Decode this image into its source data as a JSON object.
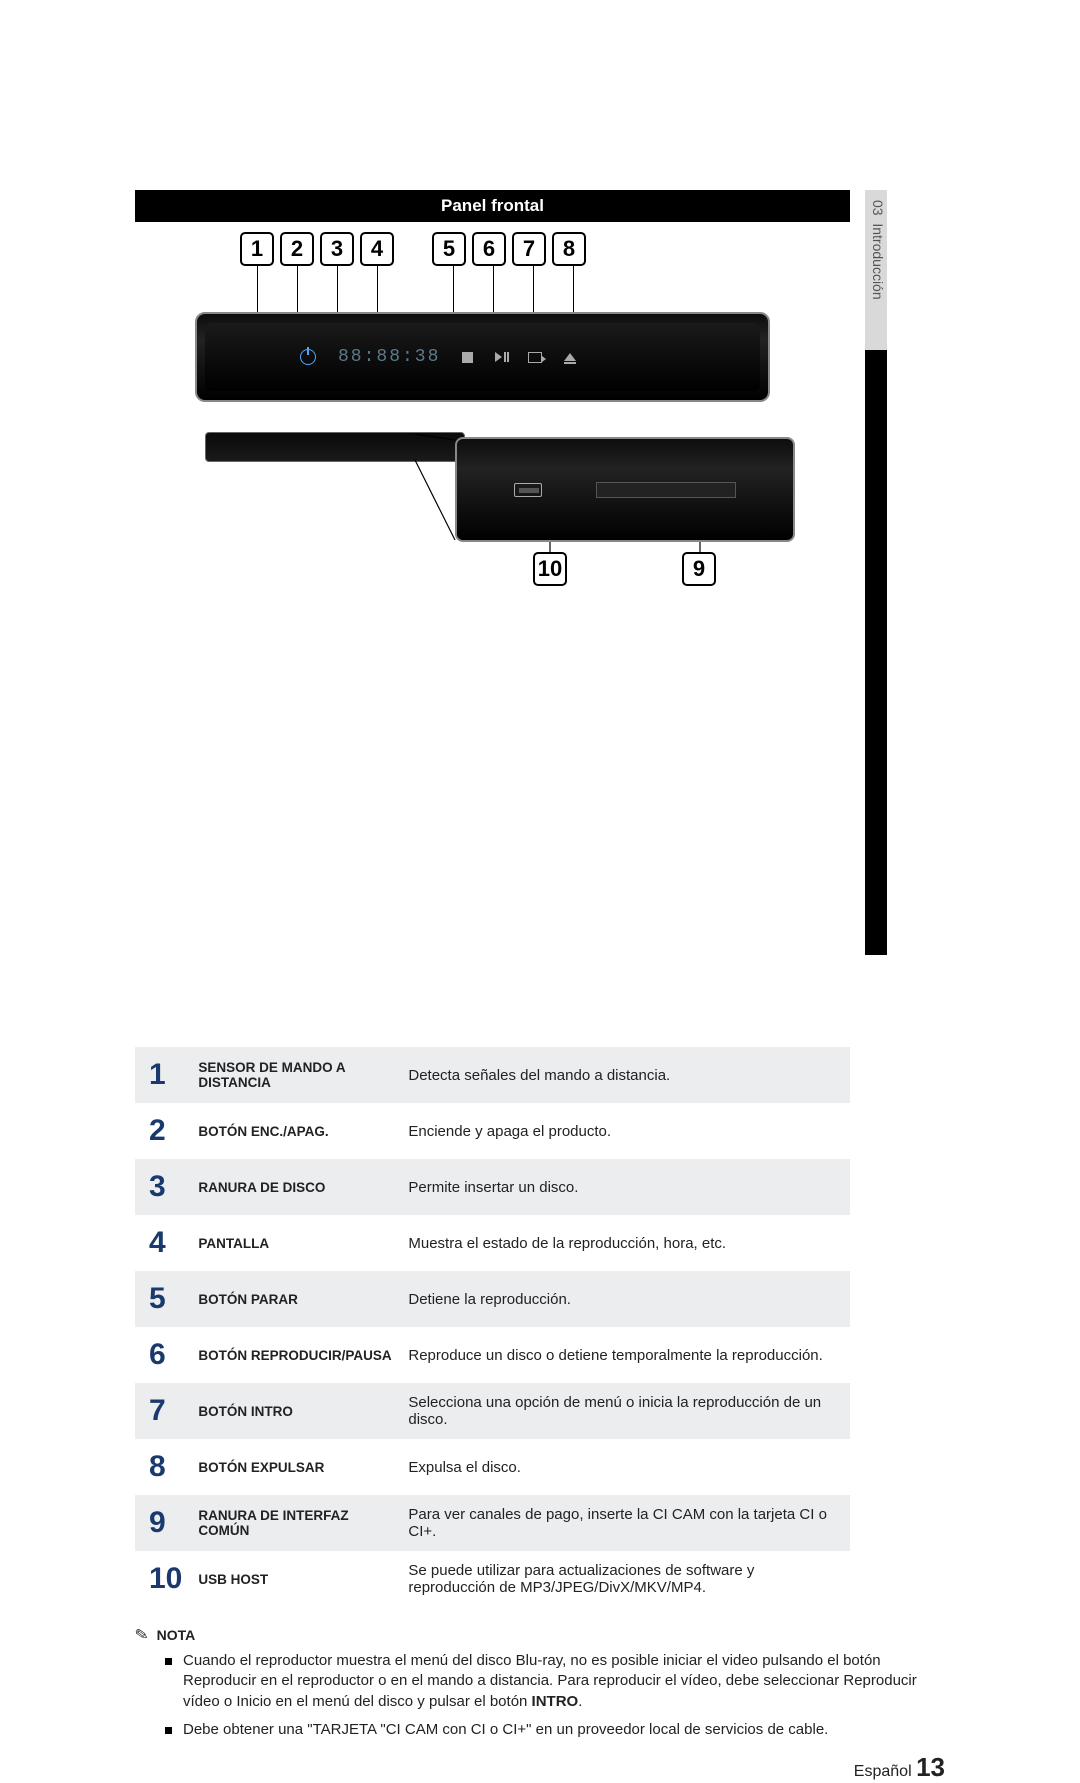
{
  "header": {
    "title": "Panel frontal",
    "side_section_num": "03",
    "side_section_title": "Introducción"
  },
  "diagram": {
    "top_callouts": [
      "1",
      "2",
      "3",
      "4",
      "5",
      "6",
      "7",
      "8"
    ],
    "bottom_callouts": [
      "10",
      "9"
    ],
    "display_text": "88:88:38"
  },
  "parts": [
    {
      "num": "1",
      "name": "SENSOR DE MANDO A DISTANCIA",
      "desc": "Detecta señales del mando a distancia."
    },
    {
      "num": "2",
      "name": "BOTÓN ENC./APAG.",
      "desc": "Enciende y apaga el producto."
    },
    {
      "num": "3",
      "name": "RANURA DE DISCO",
      "desc": "Permite insertar un disco."
    },
    {
      "num": "4",
      "name": "PANTALLA",
      "desc": "Muestra el estado de la reproducción, hora, etc."
    },
    {
      "num": "5",
      "name": "BOTÓN PARAR",
      "desc": "Detiene la reproducción."
    },
    {
      "num": "6",
      "name": "BOTÓN REPRODUCIR/PAUSA",
      "desc": "Reproduce un disco o detiene temporalmente la reproducción."
    },
    {
      "num": "7",
      "name": "BOTÓN INTRO",
      "desc": "Selecciona una opción de menú o inicia la reproducción de un disco."
    },
    {
      "num": "8",
      "name": "BOTÓN EXPULSAR",
      "desc": "Expulsa el disco."
    },
    {
      "num": "9",
      "name": "RANURA DE INTERFAZ COMÚN",
      "desc": "Para ver canales de pago, inserte la CI CAM con la tarjeta CI o CI+."
    },
    {
      "num": "10",
      "name": "USB HOST",
      "desc": "Se puede utilizar para actualizaciones de software y reproducción de MP3/JPEG/DivX/MKV/MP4."
    }
  ],
  "note": {
    "label": "NOTA",
    "items": [
      {
        "pre": "Cuando el reproductor muestra el menú del disco Blu-ray, no es posible iniciar el video pulsando el botón Reproducir en el reproductor o en el mando a distancia. Para reproducir el vídeo, debe seleccionar Reproducir vídeo o Inicio en el menú del disco y pulsar el botón ",
        "bold": "INTRO",
        "post": "."
      },
      {
        "pre": "Debe obtener una \"TARJETA \"CI CAM con CI o CI+\" en un proveedor local de servicios de cable.",
        "bold": "",
        "post": ""
      }
    ]
  },
  "footer": {
    "lang": "Español",
    "page": "13"
  },
  "colors": {
    "title_bg": "#000000",
    "num_color": "#1a3a6e",
    "alt_row": "#ebedef",
    "side_gray": "#d9d9d9"
  }
}
